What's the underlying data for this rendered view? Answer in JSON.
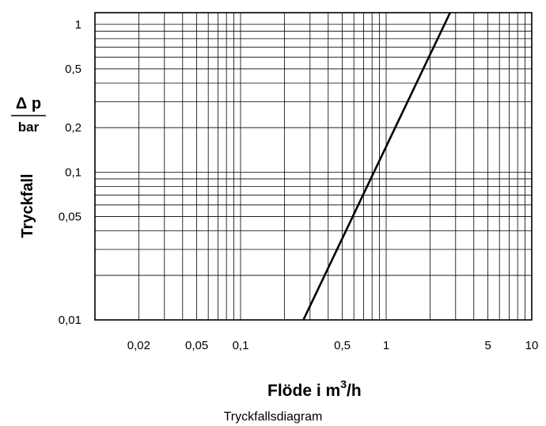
{
  "chart_data": {
    "type": "line",
    "scale": {
      "x": "log",
      "y": "log"
    },
    "xlim": [
      0.01,
      10
    ],
    "ylim": [
      0.01,
      1.2
    ],
    "x_ticks": [
      {
        "value": 0.02,
        "label": "0,02"
      },
      {
        "value": 0.05,
        "label": "0,05"
      },
      {
        "value": 0.1,
        "label": "0,1"
      },
      {
        "value": 0.5,
        "label": "0,5"
      },
      {
        "value": 1,
        "label": "1"
      },
      {
        "value": 5,
        "label": "5"
      },
      {
        "value": 10,
        "label": "10"
      }
    ],
    "y_ticks": [
      {
        "value": 1,
        "label": "1"
      },
      {
        "value": 0.5,
        "label": "0,5"
      },
      {
        "value": 0.2,
        "label": "0,2"
      },
      {
        "value": 0.1,
        "label": "0,1"
      },
      {
        "value": 0.05,
        "label": "0,05"
      },
      {
        "value": 0.01,
        "label": "0,01"
      }
    ],
    "ylabel": {
      "main": "Tryckfall",
      "symbol": "Δ p",
      "unit": "bar"
    },
    "xlabel": {
      "text": "Flöde i m",
      "superscript": "3",
      "suffix": "/h"
    },
    "grid": true,
    "series": [
      {
        "x": [
          0.27,
          2.75
        ],
        "y": [
          0.01,
          1.2
        ]
      }
    ]
  },
  "caption": "Tryckfallsdiagram"
}
